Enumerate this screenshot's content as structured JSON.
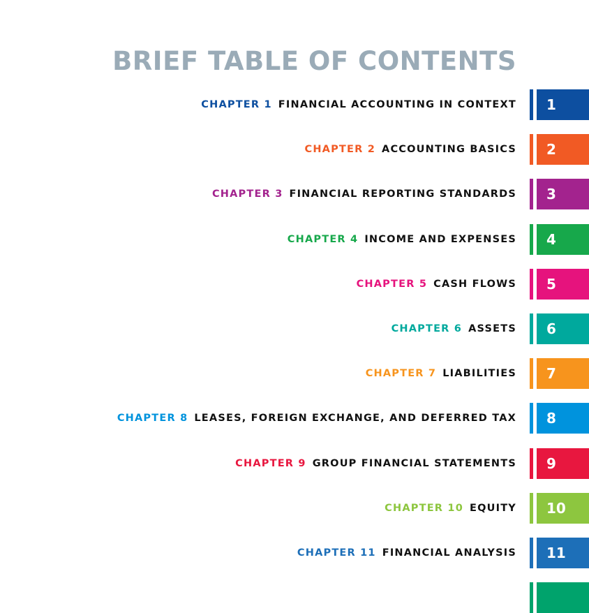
{
  "title": "BRIEF TABLE OF CONTENTS",
  "chapters": [
    {
      "label": "CHAPTER 1",
      "title": "FINANCIAL ACCOUNTING IN CONTEXT",
      "number": "1",
      "color": "#0d4fa0"
    },
    {
      "label": "CHAPTER 2",
      "title": "ACCOUNTING BASICS",
      "number": "2",
      "color": "#f15a24"
    },
    {
      "label": "CHAPTER 3",
      "title": "FINANCIAL REPORTING STANDARDS",
      "number": "3",
      "color": "#a3238e"
    },
    {
      "label": "CHAPTER 4",
      "title": "INCOME AND EXPENSES",
      "number": "4",
      "color": "#17a84b"
    },
    {
      "label": "CHAPTER 5",
      "title": "CASH FLOWS",
      "number": "5",
      "color": "#e6137d"
    },
    {
      "label": "CHAPTER 6",
      "title": "ASSETS",
      "number": "6",
      "color": "#00a99d"
    },
    {
      "label": "CHAPTER 7",
      "title": "LIABILITIES",
      "number": "7",
      "color": "#f7941d"
    },
    {
      "label": "CHAPTER 8",
      "title": "LEASES, FOREIGN EXCHANGE, AND DEFERRED TAX",
      "number": "8",
      "color": "#0093dd"
    },
    {
      "label": "CHAPTER 9",
      "title": "GROUP FINANCIAL STATEMENTS",
      "number": "9",
      "color": "#e8173f"
    },
    {
      "label": "CHAPTER 10",
      "title": "EQUITY",
      "number": "10",
      "color": "#8dc63f"
    },
    {
      "label": "CHAPTER 11",
      "title": "FINANCIAL ANALYSIS",
      "number": "11",
      "color": "#1d6fb8"
    }
  ]
}
